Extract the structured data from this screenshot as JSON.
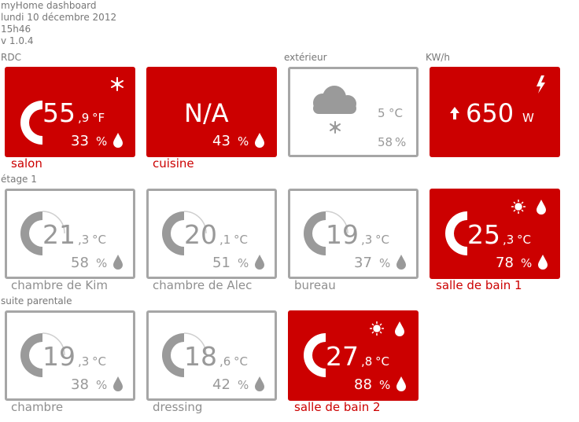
{
  "header": {
    "app_title": "myHome dashboard",
    "date": "lundi 10 décembre 2012",
    "time": "15h46",
    "version": "v 1.0.4"
  },
  "sections": {
    "rdc": "RDC",
    "exterieur": "extérieur",
    "kwh": "KW/h",
    "etage1": "étage 1",
    "suite": "suite parentale"
  },
  "colors": {
    "accent": "#cc0000",
    "muted": "#999999",
    "border": "#a6a6a6"
  },
  "tiles": [
    {
      "id": "salon",
      "name": "salon",
      "style": "red",
      "temp_int": "55",
      "temp_dec": ",9",
      "unit": "°F",
      "humidity": "33",
      "hum_unit": "%",
      "temp_level": 1.0,
      "icons": [
        "snowflake-icon",
        "drop-icon"
      ]
    },
    {
      "id": "cuisine",
      "name": "cuisine",
      "style": "red",
      "main_text": "N/A",
      "humidity": "43",
      "hum_unit": "%",
      "icons": [
        "drop-icon"
      ]
    },
    {
      "id": "exterieur",
      "name": "",
      "style": "gray",
      "temp_int": "5",
      "unit": "°C",
      "humidity": "58",
      "hum_unit": "%",
      "weather_icon": "snow-cloud-icon"
    },
    {
      "id": "power",
      "name": "",
      "style": "red",
      "power_value": "650",
      "power_unit": "W",
      "icons": [
        "lightning-icon",
        "arrow-up-icon"
      ]
    },
    {
      "id": "kim",
      "name": "chambre de Kim",
      "style": "gray",
      "temp_int": "21",
      "temp_dec": ",3",
      "unit": "°C",
      "humidity": "58",
      "hum_unit": "%",
      "temp_level": 0.55,
      "icons": [
        "drop-icon"
      ]
    },
    {
      "id": "alec",
      "name": "chambre de Alec",
      "style": "gray",
      "temp_int": "20",
      "temp_dec": ",1",
      "unit": "°C",
      "humidity": "51",
      "hum_unit": "%",
      "temp_level": 0.5,
      "icons": [
        "drop-icon"
      ]
    },
    {
      "id": "bureau",
      "name": "bureau",
      "style": "gray",
      "temp_int": "19",
      "temp_dec": ",3",
      "unit": "°C",
      "humidity": "37",
      "hum_unit": "%",
      "temp_level": 0.45,
      "icons": [
        "drop-icon"
      ]
    },
    {
      "id": "sdb1",
      "name": "salle de bain 1",
      "style": "red",
      "temp_int": "25",
      "temp_dec": ",3",
      "unit": "°C",
      "humidity": "78",
      "hum_unit": "%",
      "temp_level": 0.7,
      "icons": [
        "sun-icon",
        "drop-icon",
        "drop-icon"
      ]
    },
    {
      "id": "chambre",
      "name": "chambre",
      "style": "gray",
      "temp_int": "19",
      "temp_dec": ",3",
      "unit": "°C",
      "humidity": "38",
      "hum_unit": "%",
      "temp_level": 0.45,
      "icons": [
        "drop-icon"
      ]
    },
    {
      "id": "dressing",
      "name": "dressing",
      "style": "gray",
      "temp_int": "18",
      "temp_dec": ",6",
      "unit": "°C",
      "humidity": "42",
      "hum_unit": "%",
      "temp_level": 0.4,
      "icons": [
        "drop-icon"
      ]
    },
    {
      "id": "sdb2",
      "name": "salle de bain 2",
      "style": "red",
      "temp_int": "27",
      "temp_dec": ",8",
      "unit": "°C",
      "humidity": "88",
      "hum_unit": "%",
      "temp_level": 0.75,
      "icons": [
        "sun-icon",
        "drop-icon",
        "drop-icon"
      ]
    }
  ]
}
